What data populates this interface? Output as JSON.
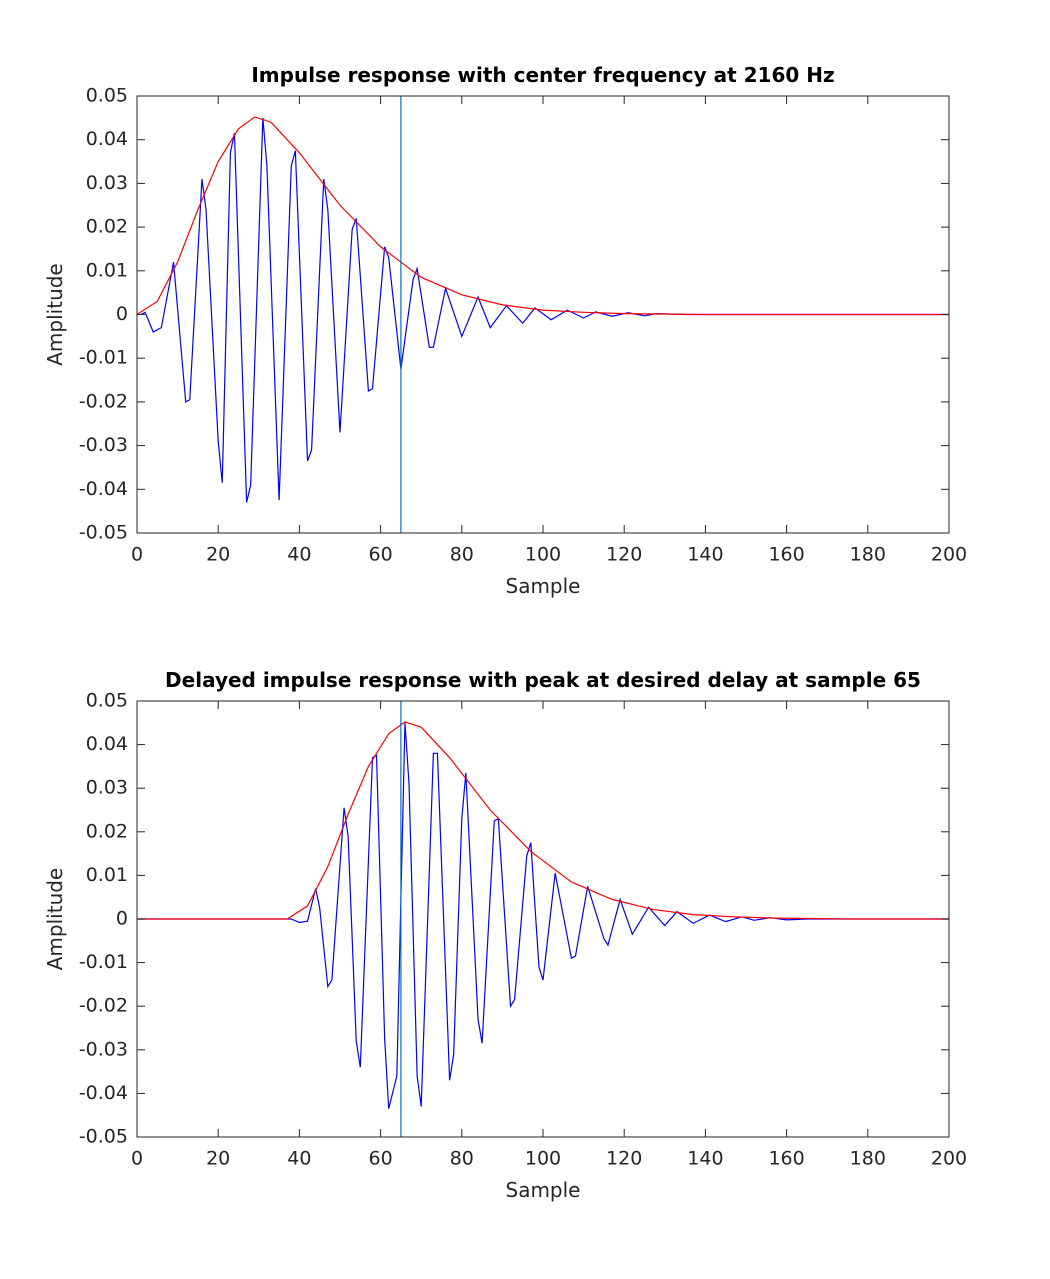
{
  "chart_data": [
    {
      "type": "line",
      "title": "Impulse response with center frequency at 2160 Hz",
      "x_label": "Sample",
      "y_label": "Amplitude",
      "xlim": [
        0,
        200
      ],
      "ylim": [
        -0.05,
        0.05
      ],
      "xticks": [
        0,
        20,
        40,
        60,
        80,
        100,
        120,
        140,
        160,
        180,
        200
      ],
      "yticks": [
        -0.05,
        -0.04,
        -0.03,
        -0.02,
        -0.01,
        0,
        0.01,
        0.02,
        0.03,
        0.04,
        0.05
      ],
      "vline": 65,
      "vline_color": "#0072bd",
      "series": [
        {
          "color": "#0000ff",
          "x": [
            1,
            2,
            4,
            6,
            9,
            12,
            13,
            16,
            17,
            20,
            21,
            23,
            24,
            27,
            28,
            31,
            32,
            35,
            38,
            39,
            42,
            43,
            46,
            47,
            50,
            53,
            54,
            57,
            58,
            61,
            62,
            65,
            68,
            69,
            72,
            73,
            76,
            80,
            84,
            87,
            91,
            95,
            98,
            102,
            106,
            110,
            113,
            117,
            121,
            125,
            128,
            135,
            200
          ],
          "values": [
            0,
            0.0005,
            -0.004,
            -0.003,
            0.012,
            -0.02,
            -0.0195,
            0.031,
            0.024,
            -0.029,
            -0.0385,
            0.037,
            0.0415,
            -0.043,
            -0.039,
            0.045,
            0.034,
            -0.0425,
            0.034,
            0.0375,
            -0.0335,
            -0.031,
            0.031,
            0.024,
            -0.027,
            0.0195,
            0.022,
            -0.0175,
            -0.017,
            0.0155,
            0.013,
            -0.0125,
            0.008,
            0.0105,
            -0.0075,
            -0.0075,
            0.006,
            -0.005,
            0.004,
            -0.003,
            0.002,
            -0.002,
            0.0015,
            -0.0012,
            0.001,
            -0.0008,
            0.0006,
            -0.0004,
            0.0004,
            -0.0003,
            0.0002,
            0,
            0
          ]
        },
        {
          "color": "#ff0000",
          "x": [
            0,
            5,
            10,
            15,
            20,
            25,
            29,
            33,
            40,
            50,
            60,
            65,
            70,
            80,
            90,
            100,
            110,
            120,
            140,
            200
          ],
          "values": [
            0,
            0.003,
            0.012,
            0.024,
            0.035,
            0.0425,
            0.0452,
            0.044,
            0.037,
            0.025,
            0.0155,
            0.012,
            0.0085,
            0.0045,
            0.0022,
            0.001,
            0.0005,
            0.0002,
            0,
            0
          ]
        }
      ]
    },
    {
      "type": "line",
      "title": "Delayed impulse response with peak at desired delay at sample 65",
      "x_label": "Sample",
      "y_label": "Amplitude",
      "xlim": [
        0,
        200
      ],
      "ylim": [
        -0.05,
        0.05
      ],
      "xticks": [
        0,
        20,
        40,
        60,
        80,
        100,
        120,
        140,
        160,
        180,
        200
      ],
      "yticks": [
        -0.05,
        -0.04,
        -0.03,
        -0.02,
        -0.01,
        0,
        0.01,
        0.02,
        0.03,
        0.04,
        0.05
      ],
      "vline": 65,
      "vline_color": "#0072bd",
      "series": [
        {
          "color": "#0000ff",
          "x": [
            0,
            38,
            40,
            42,
            44,
            45,
            47,
            48,
            51,
            52,
            54,
            55,
            58,
            59,
            61,
            62,
            64,
            66,
            67,
            69,
            70,
            73,
            74,
            77,
            78,
            80,
            81,
            84,
            85,
            88,
            89,
            92,
            93,
            96,
            97,
            99,
            100,
            103,
            107,
            108,
            111,
            115,
            116,
            119,
            122,
            126,
            130,
            133,
            137,
            141,
            145,
            149,
            152,
            156,
            160,
            165,
            200
          ],
          "values": [
            0,
            0,
            -0.0008,
            -0.0005,
            0.007,
            0.0025,
            -0.0155,
            -0.014,
            0.0255,
            0.019,
            -0.028,
            -0.034,
            0.037,
            0.0375,
            -0.0275,
            -0.0435,
            -0.036,
            0.045,
            0.031,
            -0.036,
            -0.043,
            0.038,
            0.038,
            -0.037,
            -0.031,
            0.023,
            0.0335,
            -0.023,
            -0.0285,
            0.0225,
            0.023,
            -0.02,
            -0.0185,
            0.0145,
            0.0175,
            -0.011,
            -0.014,
            0.0105,
            -0.009,
            -0.0085,
            0.0075,
            -0.0045,
            -0.006,
            0.0045,
            -0.0035,
            0.0027,
            -0.0015,
            0.0017,
            -0.001,
            0.0009,
            -0.0006,
            0.0005,
            -0.0003,
            0.0003,
            -0.0002,
            0,
            0
          ]
        },
        {
          "color": "#ff0000",
          "x": [
            0,
            37,
            42,
            47,
            52,
            57,
            62,
            66,
            70,
            77,
            87,
            97,
            102,
            107,
            117,
            127,
            137,
            147,
            157,
            177,
            200
          ],
          "values": [
            0,
            0,
            0.003,
            0.012,
            0.024,
            0.035,
            0.0425,
            0.0452,
            0.044,
            0.037,
            0.025,
            0.0155,
            0.012,
            0.0085,
            0.0045,
            0.0022,
            0.001,
            0.0005,
            0.0002,
            0,
            0
          ]
        }
      ]
    }
  ]
}
